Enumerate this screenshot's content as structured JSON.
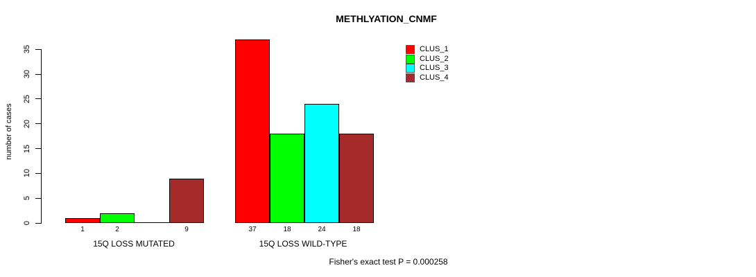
{
  "title": "METHLYATION_CNMF",
  "y_axis": {
    "label": "number of cases"
  },
  "footer": "Fisher's exact test P = 0.000258",
  "legend": {
    "position": "top-right",
    "items": [
      {
        "label": "CLUS_1",
        "color": "#ff0000"
      },
      {
        "label": "CLUS_2",
        "color": "#00ff00"
      },
      {
        "label": "CLUS_3",
        "color": "#00ffff"
      },
      {
        "label": "CLUS_4",
        "color": "#a52a2a"
      }
    ]
  },
  "chart_data": {
    "type": "bar",
    "title": "METHLYATION_CNMF",
    "xlabel": "",
    "ylabel": "number of cases",
    "ylim": [
      0,
      37
    ],
    "yticks": [
      0,
      5,
      10,
      15,
      20,
      25,
      30,
      35
    ],
    "grid": false,
    "legend_position": "top-right",
    "categories": [
      "15Q LOSS MUTATED",
      "15Q LOSS WILD-TYPE"
    ],
    "series": [
      {
        "name": "CLUS_1",
        "color": "#ff0000",
        "values": [
          1,
          37
        ]
      },
      {
        "name": "CLUS_2",
        "color": "#00ff00",
        "values": [
          2,
          18
        ]
      },
      {
        "name": "CLUS_3",
        "color": "#00ffff",
        "values": [
          0,
          24
        ]
      },
      {
        "name": "CLUS_4",
        "color": "#a52a2a",
        "values": [
          9,
          18
        ]
      }
    ],
    "bar_count_labels": [
      [
        "1",
        "2",
        "",
        "9"
      ],
      [
        "37",
        "18",
        "24",
        "18"
      ]
    ],
    "annotation": "Fisher's exact test P = 0.000258"
  }
}
